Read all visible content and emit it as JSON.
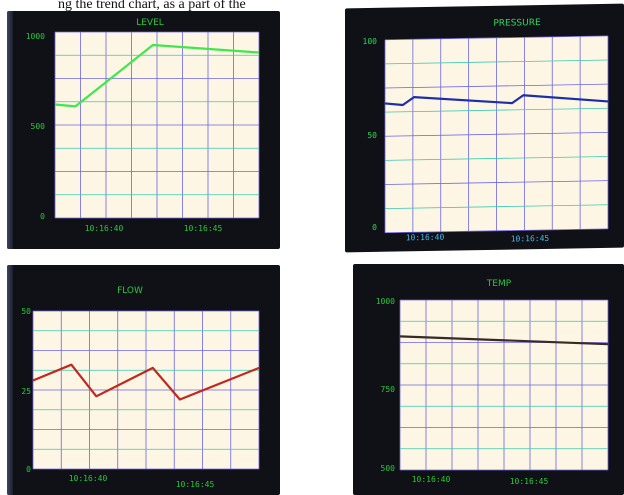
{
  "caption_fragment": "ng the trend chart, as a part of the",
  "panels": [
    {
      "title": "LEVEL",
      "axis_color": "#29c93a",
      "time_color": "#29c93a",
      "line_color": "#3ee84a"
    },
    {
      "title": "PRESSURE",
      "axis_color": "#2fd95a",
      "time_color": "#49b8e8",
      "line_color": "#1b2fa8"
    },
    {
      "title": "FLOW",
      "axis_color": "#29c93a",
      "time_color": "#29c93a",
      "line_color": "#c2281e"
    },
    {
      "title": "TEMP",
      "axis_color": "#29c93a",
      "time_color": "#29c93a",
      "line_color": "#3a2a24"
    }
  ],
  "chart_data": [
    {
      "type": "line",
      "title": "LEVEL",
      "ylim": [
        0,
        1000
      ],
      "yticks": [
        "0",
        "500",
        "1000"
      ],
      "xtick_labels": [
        "10:16:40",
        "10:16:45"
      ],
      "grid": true,
      "series": [
        {
          "x": [
            0,
            0.1,
            0.48,
            1.0
          ],
          "values": [
            610,
            600,
            930,
            890
          ]
        }
      ]
    },
    {
      "type": "line",
      "title": "PRESSURE",
      "ylim": [
        0,
        100
      ],
      "yticks": [
        "0",
        "50",
        "100"
      ],
      "xtick_labels": [
        "10:16:40",
        "10:16:45"
      ],
      "grid": true,
      "series": [
        {
          "x": [
            0,
            0.08,
            0.13,
            0.57,
            0.62,
            1.0
          ],
          "values": [
            67,
            66,
            70,
            66,
            70,
            66
          ]
        }
      ]
    },
    {
      "type": "line",
      "title": "FLOW",
      "ylim": [
        0,
        50
      ],
      "yticks": [
        "0",
        "25",
        "50"
      ],
      "xtick_labels": [
        "10:16:40",
        "10:16:45"
      ],
      "grid": true,
      "series": [
        {
          "x": [
            0,
            0.17,
            0.28,
            0.53,
            0.65,
            1.0
          ],
          "values": [
            28,
            33,
            23,
            32,
            22,
            32
          ]
        }
      ]
    },
    {
      "type": "line",
      "title": "TEMP",
      "ylim": [
        500,
        1000
      ],
      "yticks": [
        "500",
        "750",
        "1000"
      ],
      "xtick_labels": [
        "10:16:40",
        "10:16:45"
      ],
      "grid": true,
      "series": [
        {
          "x": [
            0,
            1.0
          ],
          "values": [
            893,
            870
          ]
        }
      ]
    }
  ]
}
